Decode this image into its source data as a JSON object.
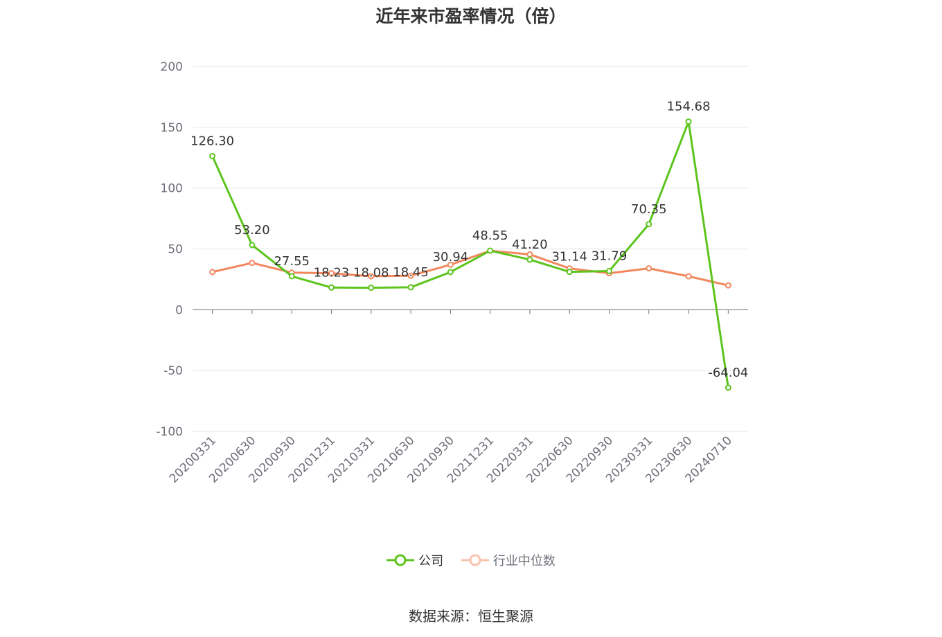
{
  "title": "近年来市盈率情况（倍）",
  "source": "数据来源：恒生聚源",
  "colors": {
    "company": "#5cc41d",
    "industry": "#f2875e",
    "grid": "#e0e6f1",
    "axis": "#6e7079",
    "text": "#333333"
  },
  "chart_data": {
    "type": "line",
    "title": "近年来市盈率情况（倍）",
    "categories": [
      "20200331",
      "20200630",
      "20200930",
      "20201231",
      "20210331",
      "20210630",
      "20210930",
      "20211231",
      "20220331",
      "20220630",
      "20220930",
      "20230331",
      "20230630",
      "20240710"
    ],
    "ylim": [
      -100,
      200
    ],
    "yticks": [
      200,
      150,
      100,
      50,
      0,
      -50,
      -100
    ],
    "grid": true,
    "legend_position": "bottom",
    "series": [
      {
        "name": "公司",
        "color": "#5cc41d",
        "values": [
          126.3,
          53.2,
          27.55,
          18.23,
          18.08,
          18.45,
          30.94,
          48.55,
          41.2,
          31.14,
          31.79,
          70.35,
          154.68,
          -64.04
        ],
        "labels": [
          "126.30",
          "53.20",
          "27.55",
          "18.23",
          "18.08",
          "18.45",
          "30.94",
          "48.55",
          "41.20",
          "31.14",
          "31.79",
          "70.35",
          "154.68",
          "-64.04"
        ]
      },
      {
        "name": "行业中位数",
        "color": "#f2875e",
        "values": [
          31,
          38.5,
          30.5,
          30,
          27.5,
          28,
          37,
          48.5,
          45.5,
          34,
          30,
          34,
          27.5,
          20
        ]
      }
    ]
  }
}
